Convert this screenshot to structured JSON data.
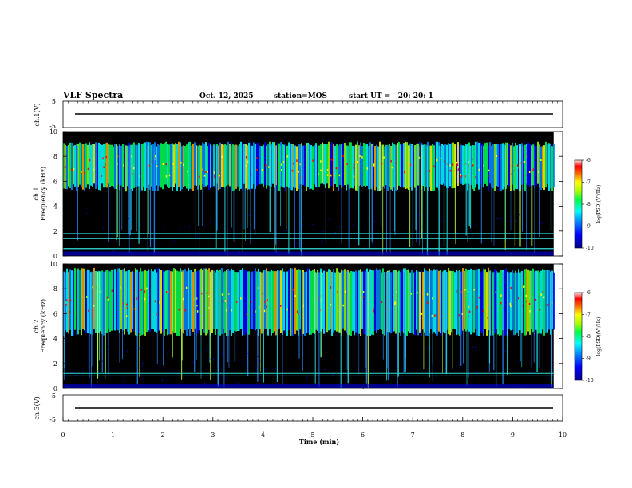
{
  "header": {
    "title": "VLF Spectra",
    "date": "Oct. 12, 2025",
    "station": "station=MOS",
    "start_ut": "start UT =   20: 20: 1"
  },
  "chart_data": [
    {
      "type": "line",
      "panel": "ch1-voltage",
      "ylabel": "ch.1(V)",
      "ylim": [
        -5,
        5
      ],
      "yticks": [
        "5",
        "-5"
      ],
      "trace_level": 0
    },
    {
      "type": "heatmap",
      "panel": "ch1-spectrogram",
      "ylabel": "ch.1\nFrequency (kHz)",
      "ylim": [
        0,
        10
      ],
      "yticks": [
        "10",
        "8",
        "6",
        "4",
        "2",
        "0"
      ],
      "band_khz": [
        5.5,
        9.0
      ],
      "cyan_lines_khz": [
        1.8,
        1.4,
        0.6,
        0.5
      ],
      "colorbar": {
        "label": "log(PSD)(V²/Hz)",
        "ticks": [
          "-6",
          "-7",
          "-8",
          "-9",
          "-10"
        ]
      }
    },
    {
      "type": "heatmap",
      "panel": "ch2-spectrogram",
      "ylabel": "ch.2\nFrequency (kHz)",
      "ylim": [
        0,
        10
      ],
      "yticks": [
        "10",
        "8",
        "6",
        "4",
        "2",
        "0"
      ],
      "band_khz": [
        4.5,
        9.5
      ],
      "cyan_lines_khz": [
        1.2,
        1.0
      ],
      "colorbar": {
        "label": "log(PSD)(V²/Hz)",
        "ticks": [
          "-6",
          "-7",
          "-8",
          "-9",
          "-10"
        ]
      }
    },
    {
      "type": "line",
      "panel": "ch3-voltage",
      "ylabel": "ch.3(V)",
      "ylim": [
        -5,
        5
      ],
      "yticks": [
        "5",
        "-5"
      ],
      "trace_level": 0
    }
  ],
  "xaxis": {
    "label": "Time (min)",
    "xlim": [
      0,
      10
    ],
    "ticks": [
      "0",
      "1",
      "2",
      "3",
      "4",
      "5",
      "6",
      "7",
      "8",
      "9",
      "10"
    ],
    "data_end_min": 9.82
  },
  "colors": {
    "dark": "#000000",
    "cyan": "#33dddd",
    "colormap": [
      "#000088",
      "#0000ff",
      "#0088ff",
      "#00ffff",
      "#00ff55",
      "#99ff00",
      "#ffff00",
      "#ffaa00",
      "#ff0000",
      "#ffffff"
    ]
  }
}
